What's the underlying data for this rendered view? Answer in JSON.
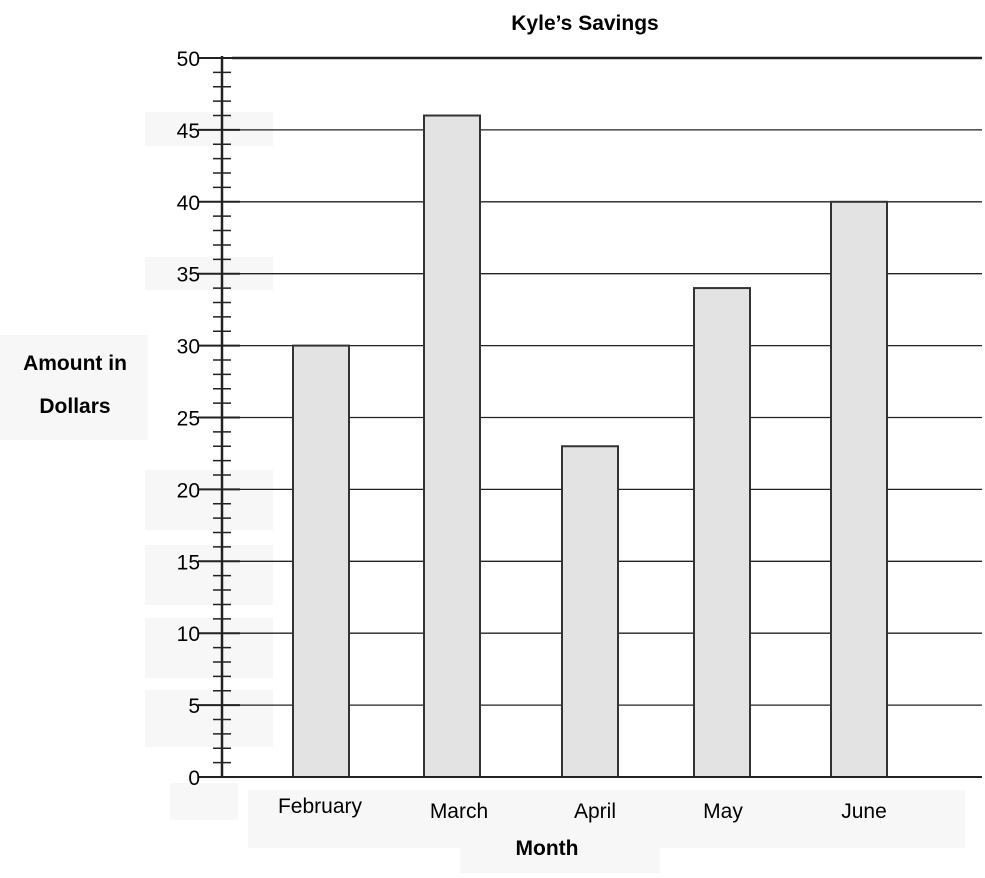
{
  "chart_data": {
    "type": "bar",
    "title": "Kyle’s Savings",
    "xlabel": "Month",
    "ylabel_lines": [
      "Amount in",
      "Dollars"
    ],
    "categories": [
      "February",
      "March",
      "April",
      "May",
      "June"
    ],
    "values": [
      30,
      46,
      23,
      34,
      40
    ],
    "ylim": [
      0,
      50
    ],
    "yticks": [
      0,
      5,
      10,
      15,
      20,
      25,
      30,
      35,
      40,
      45,
      50
    ],
    "minor_tick_step": 1,
    "grid": true,
    "legend": "none",
    "colors": {
      "bar_fill": "#e3e3e3",
      "bar_stroke": "#333333",
      "grid": "#222222",
      "axis": "#222222"
    }
  }
}
